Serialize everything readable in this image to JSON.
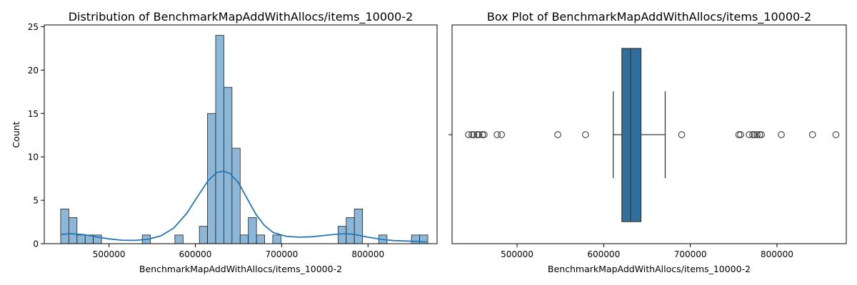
{
  "chart_data": [
    {
      "type": "histogram",
      "title": "Distribution of BenchmarkMapAddWithAllocs/items_10000-2",
      "xlabel": "BenchmarkMapAddWithAllocs/items_10000-2",
      "ylabel": "Count",
      "xlim": [
        425000,
        880000
      ],
      "ylim": [
        0,
        25.2
      ],
      "x_ticks": [
        500000,
        600000,
        700000,
        800000
      ],
      "x_tick_labels": [
        "500000",
        "600000",
        "700000",
        "800000"
      ],
      "y_ticks": [
        0,
        5,
        10,
        15,
        20,
        25
      ],
      "y_tick_labels": [
        "0",
        "5",
        "10",
        "15",
        "20",
        "25"
      ],
      "bin_start": 444000,
      "bin_width": 9450,
      "counts": [
        4,
        3,
        1,
        1,
        1,
        0,
        0,
        0,
        0,
        0,
        1,
        0,
        0,
        0,
        1,
        0,
        0,
        2,
        15,
        24,
        18,
        11,
        1,
        3,
        1,
        0,
        1,
        0,
        0,
        0,
        0,
        0,
        0,
        0,
        2,
        3,
        4,
        0,
        0,
        1,
        0,
        0,
        0,
        1,
        1
      ],
      "kde": {
        "x": [
          444000,
          455000,
          470000,
          485000,
          500000,
          515000,
          530000,
          545000,
          560000,
          575000,
          590000,
          605000,
          615000,
          625000,
          632000,
          640000,
          650000,
          660000,
          670000,
          680000,
          690000,
          705000,
          720000,
          735000,
          750000,
          765000,
          775000,
          785000,
          800000,
          815000,
          830000,
          845000,
          860000,
          868000
        ],
        "y": [
          1.05,
          1.15,
          1.05,
          0.8,
          0.55,
          0.4,
          0.38,
          0.5,
          0.9,
          1.8,
          3.5,
          5.8,
          7.3,
          8.2,
          8.35,
          8.1,
          7.0,
          5.2,
          3.4,
          2.1,
          1.3,
          0.85,
          0.75,
          0.8,
          0.95,
          1.1,
          1.15,
          1.05,
          0.75,
          0.5,
          0.35,
          0.3,
          0.25,
          0.2
        ]
      },
      "colors": {
        "bar": "#8db7d9",
        "bar_edge": "#1f1f1f",
        "kde": "#2677b6"
      }
    },
    {
      "type": "box",
      "title": "Box Plot of BenchmarkMapAddWithAllocs/items_10000-2",
      "xlabel": "BenchmarkMapAddWithAllocs/items_10000-2",
      "xlim": [
        425000,
        880000
      ],
      "x_ticks": [
        500000,
        600000,
        700000,
        800000
      ],
      "x_tick_labels": [
        "500000",
        "600000",
        "700000",
        "800000"
      ],
      "whisker_low": 611000,
      "q1": 621000,
      "median": 631000,
      "q3": 643000,
      "whisker_high": 671000,
      "outliers": [
        444000,
        448000,
        450000,
        454000,
        456000,
        460000,
        462000,
        477000,
        482000,
        547000,
        579000,
        690000,
        756000,
        758000,
        768000,
        772000,
        774000,
        777000,
        780000,
        782000,
        805000,
        841000,
        868000
      ],
      "colors": {
        "box": "#2f6f9e",
        "edge": "#3a3a3a"
      }
    }
  ]
}
